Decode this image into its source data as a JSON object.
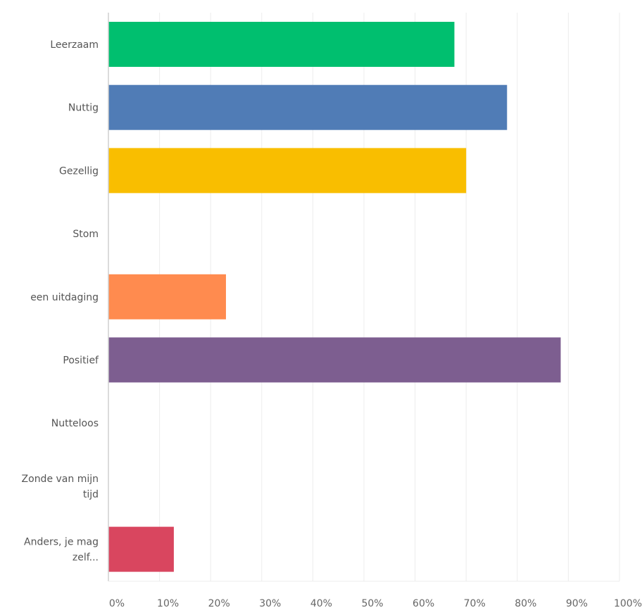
{
  "chart_data": {
    "type": "bar",
    "orientation": "horizontal",
    "categories": [
      "Leerzaam",
      "Nuttig",
      "Gezellig",
      "Stom",
      "een uitdaging",
      "Positief",
      "Nutteloos",
      "Zonde van mijn tijd",
      "Anders, je mag zelf..."
    ],
    "category_lines": [
      [
        "Leerzaam"
      ],
      [
        "Nuttig"
      ],
      [
        "Gezellig"
      ],
      [
        "Stom"
      ],
      [
        "een uitdaging"
      ],
      [
        "Positief"
      ],
      [
        "Nutteloos"
      ],
      [
        "Zonde van mijn",
        "tijd"
      ],
      [
        "Anders, je mag",
        "zelf..."
      ]
    ],
    "values": [
      67.7,
      78.0,
      70.0,
      0,
      23.0,
      88.5,
      0,
      0,
      12.8
    ],
    "colors": [
      "#00bf6f",
      "#507cb6",
      "#f9be00",
      "#6bc8cd",
      "#ff8b4f",
      "#7d5e90",
      "#d25f90",
      "#a1a4a8",
      "#d9465f"
    ],
    "xlim": [
      0,
      100
    ],
    "x_ticks": [
      0,
      10,
      20,
      30,
      40,
      50,
      60,
      70,
      80,
      90,
      100
    ],
    "x_tick_labels": [
      "0%",
      "10%",
      "20%",
      "30%",
      "40%",
      "50%",
      "60%",
      "70%",
      "80%",
      "90%",
      "100%"
    ],
    "grid": true,
    "title": "",
    "xlabel": "",
    "ylabel": ""
  }
}
